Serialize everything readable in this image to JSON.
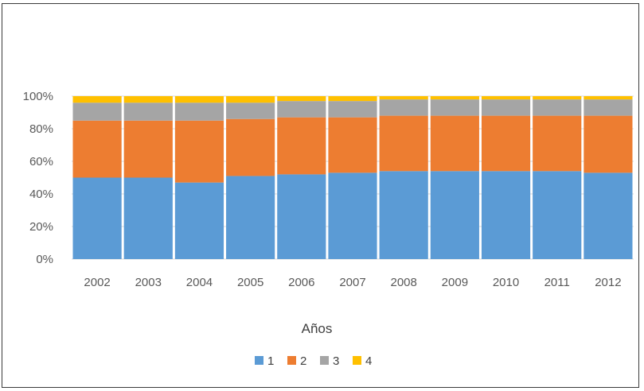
{
  "chart_data": {
    "type": "bar",
    "stacked": true,
    "percent": true,
    "categories": [
      "2002",
      "2003",
      "2004",
      "2005",
      "2006",
      "2007",
      "2008",
      "2009",
      "2010",
      "2011",
      "2012"
    ],
    "series": [
      {
        "name": "1",
        "color": "#5b9bd5",
        "values": [
          50,
          50,
          47,
          51,
          52,
          53,
          54,
          54,
          54,
          54,
          53
        ]
      },
      {
        "name": "2",
        "color": "#ed7d31",
        "values": [
          35,
          35,
          38,
          35,
          35,
          34,
          34,
          34,
          34,
          34,
          35
        ]
      },
      {
        "name": "3",
        "color": "#a5a5a5",
        "values": [
          11,
          11,
          11,
          10,
          10,
          10,
          10,
          10,
          10,
          10,
          10
        ]
      },
      {
        "name": "4",
        "color": "#ffc000",
        "values": [
          4,
          4,
          4,
          4,
          3,
          3,
          2,
          2,
          2,
          2,
          2
        ]
      }
    ],
    "yticks": [
      "0%",
      "20%",
      "40%",
      "60%",
      "80%",
      "100%"
    ],
    "ylim": [
      0,
      100
    ],
    "xlabel": "Años",
    "ylabel": "",
    "grid": true,
    "legend": "bottom"
  }
}
